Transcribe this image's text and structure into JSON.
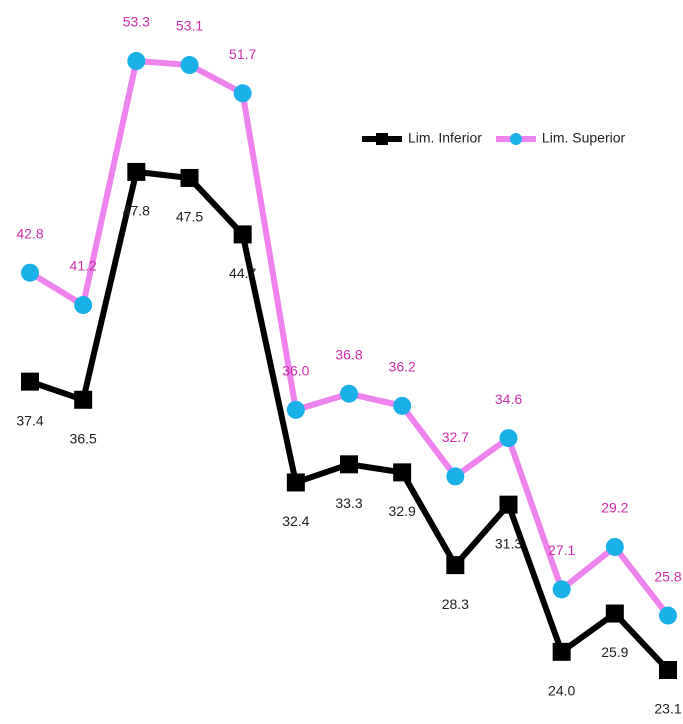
{
  "chart_data": {
    "type": "line",
    "legend": "upper right",
    "series": [
      {
        "name": "Lim. Inferior",
        "color": "#000000",
        "marker": "square",
        "marker_color": "#000000",
        "label_color": "#222222",
        "values": [
          37.4,
          36.5,
          47.8,
          47.5,
          44.7,
          32.4,
          33.3,
          32.9,
          28.3,
          31.3,
          24.0,
          25.9,
          23.1
        ],
        "value_labels": [
          "37.4",
          "36.5",
          "47.8",
          "47.5",
          "44.7",
          "32.4",
          "33.3",
          "32.9",
          "28.3",
          "31.3",
          "24.0",
          "25.9",
          "23.1"
        ]
      },
      {
        "name": "Lim. Superior",
        "color": "#ee82ee",
        "marker": "circle",
        "marker_color": "#1ab0e8",
        "label_color": "#cc2fa8",
        "values": [
          42.8,
          41.2,
          53.3,
          53.1,
          51.7,
          36.0,
          36.8,
          36.2,
          32.7,
          34.6,
          27.1,
          29.2,
          25.8
        ],
        "value_labels": [
          "42.8",
          "41.2",
          "53.3",
          "53.1",
          "51.7",
          "36.0",
          "36.8",
          "36.2",
          "32.7",
          "34.6",
          "27.1",
          "29.2",
          "25.8"
        ]
      }
    ]
  }
}
